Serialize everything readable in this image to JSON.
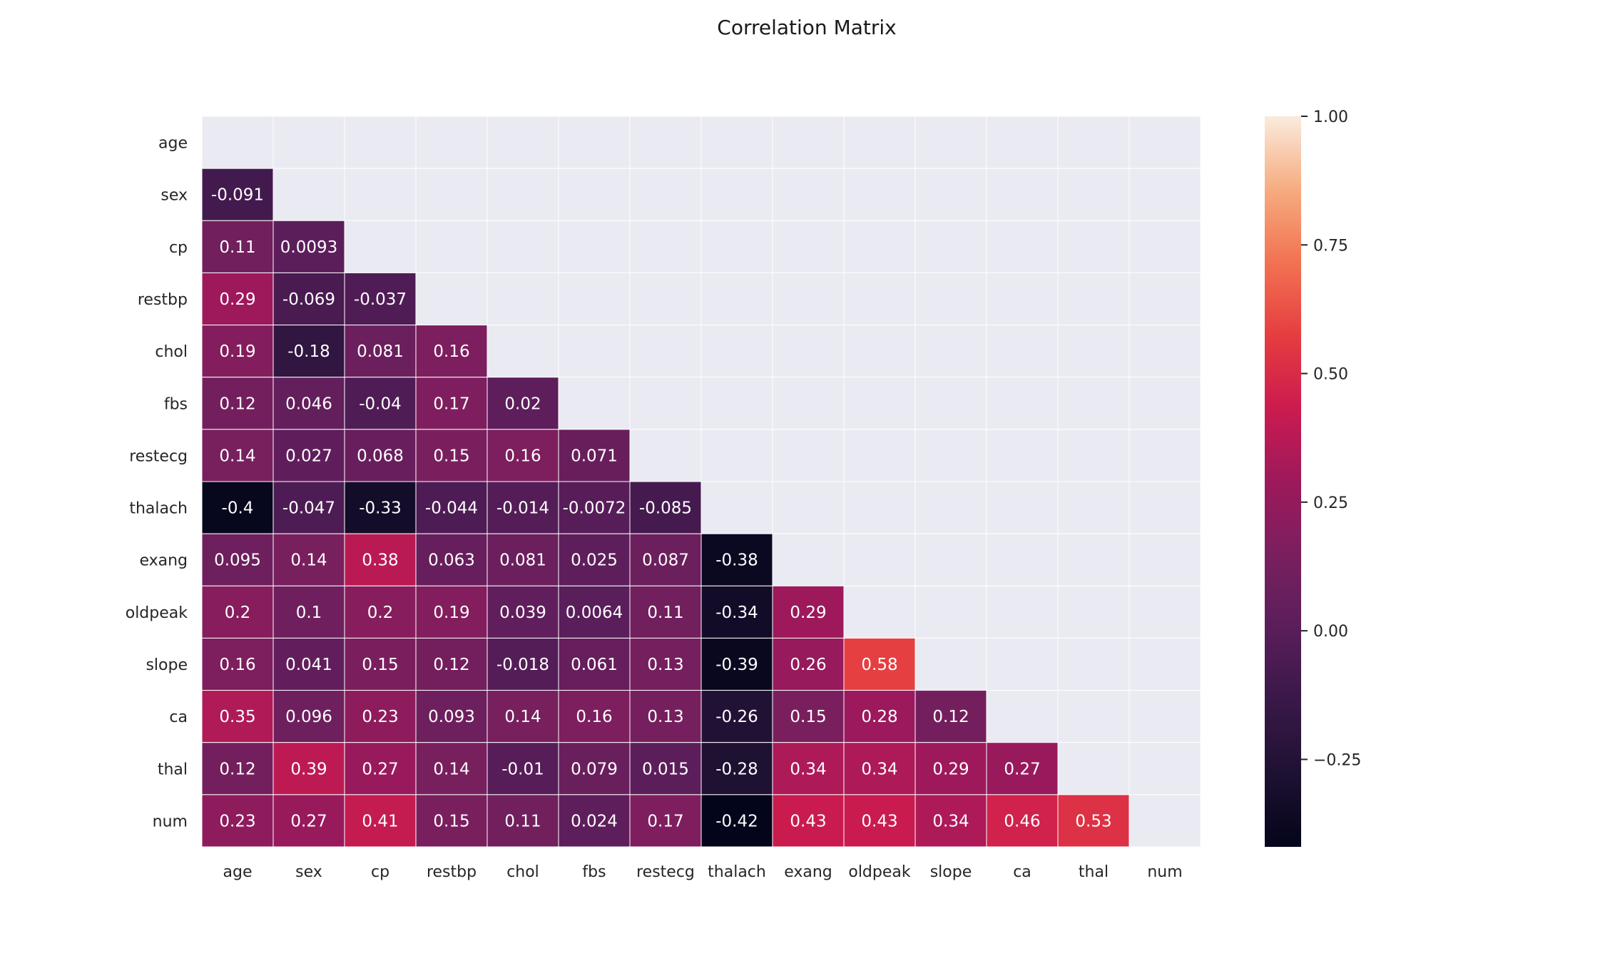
{
  "chart_data": {
    "type": "heatmap",
    "title": "Correlation Matrix",
    "xlabel": "",
    "ylabel": "",
    "mask": "upper-triangle-including-diagonal",
    "labels": [
      "age",
      "sex",
      "cp",
      "restbp",
      "chol",
      "fbs",
      "restecg",
      "thalach",
      "exang",
      "oldpeak",
      "slope",
      "ca",
      "thal",
      "num"
    ],
    "rows": [
      [],
      [
        "-0.091"
      ],
      [
        "0.11",
        "0.0093"
      ],
      [
        "0.29",
        "-0.069",
        "-0.037"
      ],
      [
        "0.19",
        "-0.18",
        "0.081",
        "0.16"
      ],
      [
        "0.12",
        "0.046",
        "-0.04",
        "0.17",
        "0.02"
      ],
      [
        "0.14",
        "0.027",
        "0.068",
        "0.15",
        "0.16",
        "0.071"
      ],
      [
        "-0.4",
        "-0.047",
        "-0.33",
        "-0.044",
        "-0.014",
        "-0.0072",
        "-0.085"
      ],
      [
        "0.095",
        "0.14",
        "0.38",
        "0.063",
        "0.081",
        "0.025",
        "0.087",
        "-0.38"
      ],
      [
        "0.2",
        "0.1",
        "0.2",
        "0.19",
        "0.039",
        "0.0064",
        "0.11",
        "-0.34",
        "0.29"
      ],
      [
        "0.16",
        "0.041",
        "0.15",
        "0.12",
        "-0.018",
        "0.061",
        "0.13",
        "-0.39",
        "0.26",
        "0.58"
      ],
      [
        "0.35",
        "0.096",
        "0.23",
        "0.093",
        "0.14",
        "0.16",
        "0.13",
        "-0.26",
        "0.15",
        "0.28",
        "0.12"
      ],
      [
        "0.12",
        "0.39",
        "0.27",
        "0.14",
        "-0.01",
        "0.079",
        "0.015",
        "-0.28",
        "0.34",
        "0.34",
        "0.29",
        "0.27"
      ],
      [
        "0.23",
        "0.27",
        "0.41",
        "0.15",
        "0.11",
        "0.024",
        "0.17",
        "-0.42",
        "0.43",
        "0.43",
        "0.34",
        "0.46",
        "0.53"
      ]
    ],
    "colorbar": {
      "min": -0.42,
      "max": 1.0,
      "ticks": [
        "1.00",
        "0.75",
        "0.50",
        "0.25",
        "0.00",
        "−0.25"
      ],
      "tick_values": [
        1.0,
        0.75,
        0.5,
        0.25,
        0.0,
        -0.25
      ],
      "colormap": "rocket"
    },
    "colors": {
      "masked_cell": "#eaeaf2",
      "grid_line": "#ffffff",
      "annotation_text": "#ffffff",
      "label_text": "#262626",
      "title_text": "#1a1a1a"
    }
  }
}
